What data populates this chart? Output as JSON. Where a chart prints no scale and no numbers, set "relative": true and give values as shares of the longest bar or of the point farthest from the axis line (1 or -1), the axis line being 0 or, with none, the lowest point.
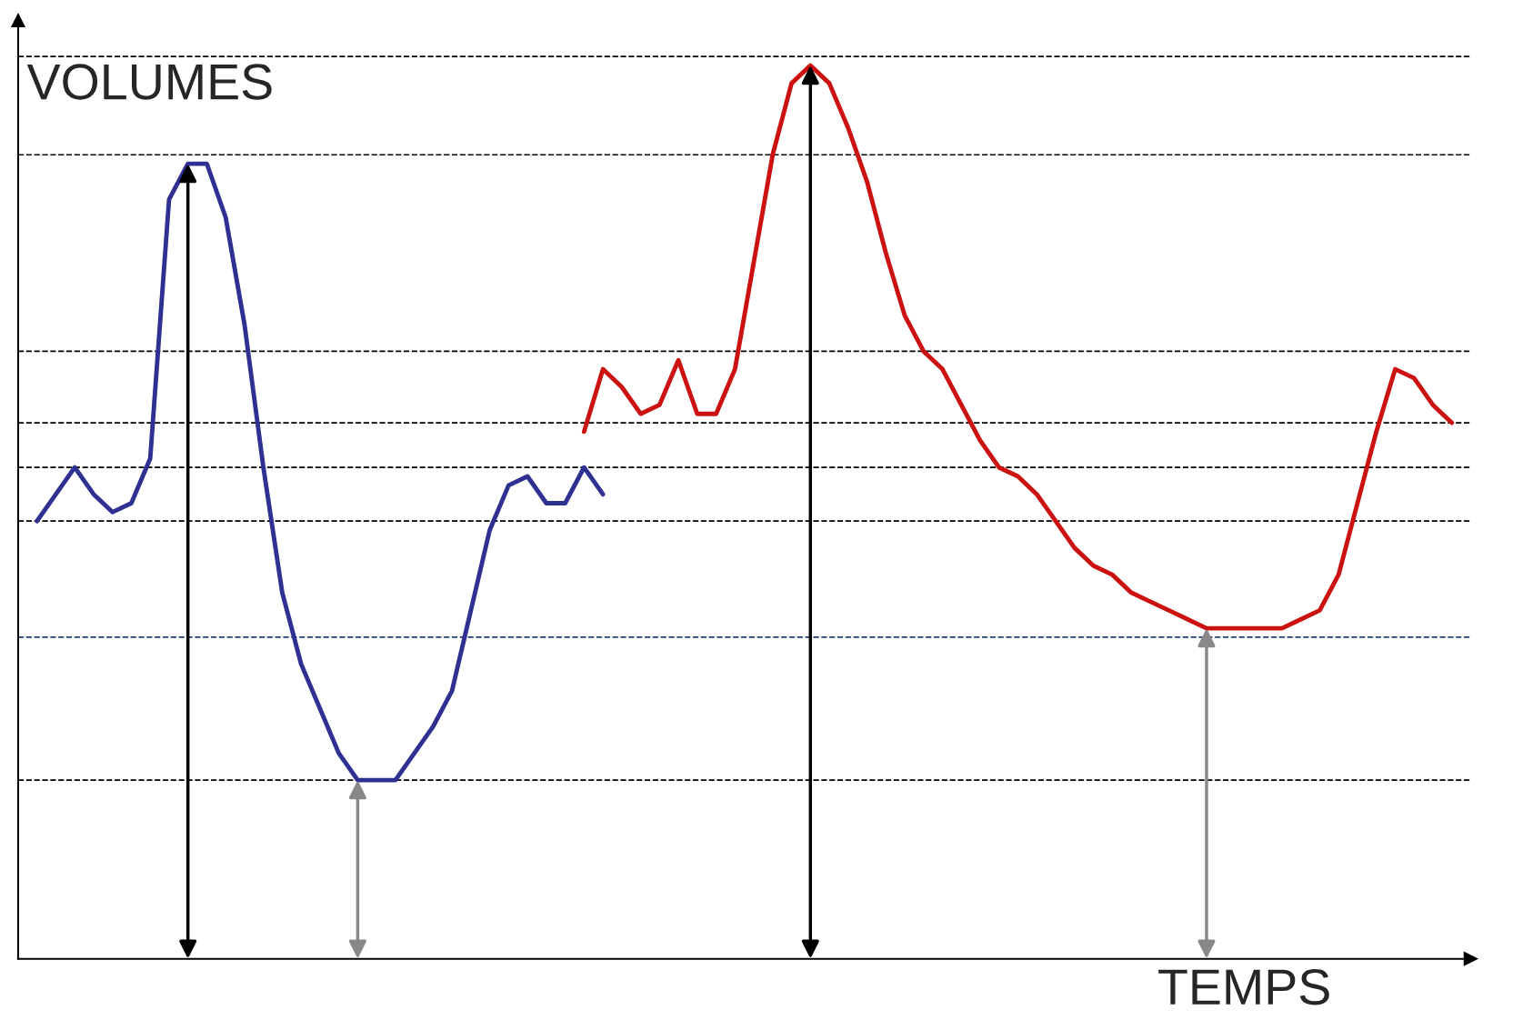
{
  "chart_data": {
    "type": "line",
    "relative": true,
    "xlabel": "TEMPS",
    "ylabel": "VOLUMES",
    "legend": false,
    "marker": "none",
    "line_style": "solid",
    "categories": [
      null,
      null,
      null,
      null,
      null,
      null,
      null,
      null,
      null,
      null,
      null,
      null,
      null,
      null,
      null,
      null,
      null,
      null,
      null,
      null,
      null,
      null,
      null,
      null,
      null,
      null,
      null,
      null,
      null,
      null,
      null,
      null,
      null,
      null,
      null,
      null,
      null,
      null,
      null,
      null,
      null,
      null,
      null,
      null,
      null,
      null,
      null,
      null,
      null,
      null,
      null,
      null,
      null,
      null,
      null,
      null,
      null,
      null,
      null,
      null,
      null,
      null,
      null,
      null,
      null,
      null,
      null,
      null,
      null,
      null,
      null,
      null,
      null,
      null,
      null,
      null
    ],
    "series": [
      {
        "color": "#2e3192",
        "values": [
          0.49,
          0.52,
          0.55,
          0.52,
          0.5,
          0.51,
          0.56,
          0.85,
          0.89,
          0.89,
          0.83,
          0.71,
          0.55,
          0.41,
          0.33,
          0.28,
          0.23,
          0.2,
          0.2,
          0.2,
          0.23,
          0.26,
          0.3,
          0.39,
          0.48,
          0.53,
          0.54,
          0.51,
          0.51,
          0.55,
          0.52,
          null,
          null,
          null,
          null,
          null,
          null,
          null,
          null,
          null,
          null,
          null,
          null,
          null,
          null,
          null,
          null,
          null,
          null,
          null,
          null,
          null,
          null,
          null,
          null,
          null,
          null,
          null,
          null,
          null,
          null,
          null,
          null,
          null,
          null,
          null,
          null,
          null,
          null,
          null,
          null,
          null,
          null,
          null,
          null,
          null
        ]
      },
      {
        "color": "#cc1111",
        "values": [
          null,
          null,
          null,
          null,
          null,
          null,
          null,
          null,
          null,
          null,
          null,
          null,
          null,
          null,
          null,
          null,
          null,
          null,
          null,
          null,
          null,
          null,
          null,
          null,
          null,
          null,
          null,
          null,
          null,
          0.59,
          0.66,
          0.64,
          0.61,
          0.62,
          0.67,
          0.61,
          0.61,
          0.66,
          0.78,
          0.9,
          0.98,
          1,
          0.98,
          0.93,
          0.87,
          0.79,
          0.72,
          0.68,
          0.66,
          0.62,
          0.58,
          0.55,
          0.54,
          0.52,
          0.49,
          0.46,
          0.44,
          0.43,
          0.41,
          0.4,
          0.39,
          0.38,
          0.37,
          0.37,
          0.37,
          0.37,
          0.37,
          0.38,
          0.39,
          0.43,
          0.51,
          0.59,
          0.66,
          0.65,
          0.62,
          0.6
        ]
      }
    ],
    "ref_lines": [
      {
        "axis": "y",
        "value": 1.01,
        "color": "#000000",
        "line_style": "dashed"
      },
      {
        "axis": "y",
        "value": 0.9,
        "color": "#000000",
        "line_style": "dashed"
      },
      {
        "axis": "y",
        "value": 0.68,
        "color": "#000000",
        "line_style": "dashed"
      },
      {
        "axis": "y",
        "value": 0.6,
        "color": "#000000",
        "line_style": "dashed"
      },
      {
        "axis": "y",
        "value": 0.55,
        "color": "#000000",
        "line_style": "dashed"
      },
      {
        "axis": "y",
        "value": 0.49,
        "color": "#000000",
        "line_style": "dashed"
      },
      {
        "axis": "y",
        "value": 0.36,
        "color": "#1f3f6f",
        "line_style": "dashed"
      },
      {
        "axis": "y",
        "value": 0.2,
        "color": "#000000",
        "line_style": "dashed"
      }
    ]
  }
}
